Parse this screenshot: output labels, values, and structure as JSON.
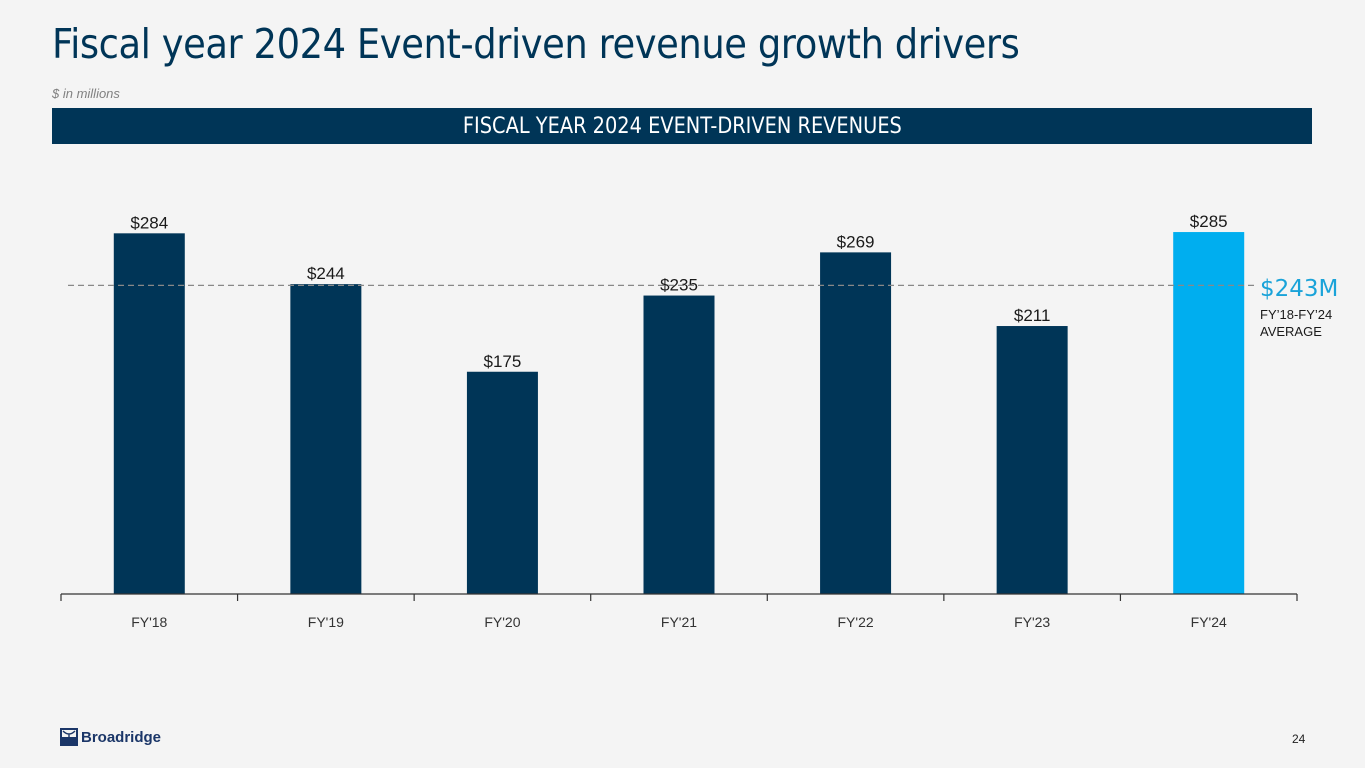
{
  "header": {
    "title": "Fiscal year 2024 Event-driven revenue growth drivers",
    "subtitle": "$ in millions",
    "banner": "FISCAL YEAR 2024 EVENT-DRIVEN REVENUES"
  },
  "chart_data": {
    "type": "bar",
    "title": "FISCAL YEAR 2024 EVENT-DRIVEN REVENUES",
    "xlabel": "",
    "ylabel": "$ in millions",
    "categories": [
      "FY'18",
      "FY'19",
      "FY'20",
      "FY'21",
      "FY'22",
      "FY'23",
      "FY'24"
    ],
    "values": [
      284,
      244,
      175,
      235,
      269,
      211,
      285
    ],
    "data_labels": [
      "$284",
      "$244",
      "$175",
      "$235",
      "$269",
      "$211",
      "$285"
    ],
    "highlight_index": 6,
    "colors": {
      "default": "#003557",
      "highlight": "#00aeef",
      "average": "#1aa3d9"
    },
    "ylim": [
      0,
      300
    ],
    "grid": false,
    "reference_line": {
      "value": 243,
      "label": "$243M",
      "description": "FY’18-FY’24 AVERAGE",
      "style": "dashed"
    }
  },
  "annotation": {
    "value": "$243M",
    "line1": "FY’18-FY’24",
    "line2": "AVERAGE"
  },
  "footer": {
    "logo": "Broadridge",
    "page_number": "24"
  }
}
